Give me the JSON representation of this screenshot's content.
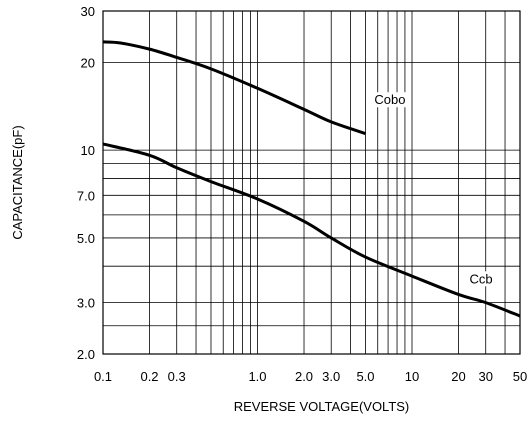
{
  "chart_data": {
    "type": "line",
    "title": "",
    "xlabel": "REVERSE VOLTAGE(VOLTS)",
    "ylabel": "CAPACITANCE(pF)",
    "x_scale": "log",
    "y_scale": "log",
    "xlim": [
      0.1,
      50
    ],
    "ylim": [
      2.0,
      30
    ],
    "x_ticks": [
      {
        "value": 0.1,
        "label": "0.1"
      },
      {
        "value": 0.2,
        "label": "0.2"
      },
      {
        "value": 0.3,
        "label": "0.3"
      },
      {
        "value": 1.0,
        "label": "1.0"
      },
      {
        "value": 2.0,
        "label": "2.0"
      },
      {
        "value": 3.0,
        "label": "3.0"
      },
      {
        "value": 5.0,
        "label": "5.0"
      },
      {
        "value": 10,
        "label": "10"
      },
      {
        "value": 20,
        "label": "20"
      },
      {
        "value": 30,
        "label": "30"
      },
      {
        "value": 50,
        "label": "50"
      }
    ],
    "y_ticks": [
      {
        "value": 2.0,
        "label": "2.0"
      },
      {
        "value": 3.0,
        "label": "3.0"
      },
      {
        "value": 5.0,
        "label": "5.0"
      },
      {
        "value": 7.0,
        "label": "7.0"
      },
      {
        "value": 10,
        "label": "10"
      },
      {
        "value": 20,
        "label": "20"
      },
      {
        "value": 30,
        "label": "30"
      }
    ],
    "x_grid": [
      0.1,
      0.2,
      0.3,
      0.4,
      0.5,
      0.6,
      0.7,
      0.8,
      0.9,
      1,
      2,
      3,
      4,
      5,
      6,
      7,
      8,
      9,
      10,
      20,
      30,
      40,
      50
    ],
    "y_grid": [
      2,
      2.5,
      3,
      4,
      5,
      6,
      7,
      8,
      9,
      10,
      20,
      30
    ],
    "grid": true,
    "series": [
      {
        "name": "Cobo",
        "color": "#000000",
        "x": [
          0.1,
          0.13,
          0.2,
          0.3,
          0.5,
          1.0,
          2.0,
          3.0,
          5.0
        ],
        "y": [
          23.5,
          23.3,
          22.2,
          20.8,
          19.0,
          16.3,
          13.8,
          12.5,
          11.4
        ]
      },
      {
        "name": "Ccb",
        "color": "#000000",
        "x": [
          0.1,
          0.2,
          0.3,
          0.5,
          1.0,
          2.0,
          3.0,
          5.0,
          10,
          20,
          30,
          50
        ],
        "y": [
          10.5,
          9.6,
          8.7,
          7.8,
          6.8,
          5.7,
          5.0,
          4.3,
          3.7,
          3.2,
          3.0,
          2.7
        ]
      }
    ]
  }
}
